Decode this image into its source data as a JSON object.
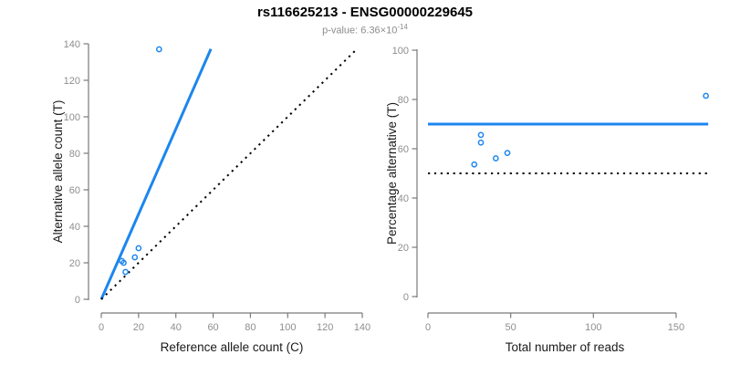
{
  "header": {
    "title": "rs116625213 - ENSG00000229645",
    "pvalue_base": "p-value: 6.36×10",
    "pvalue_exponent": "-14"
  },
  "colors": {
    "accent_blue": "#1C86EE",
    "identity_black": "#000000",
    "axis_gray": "#7a7a7a",
    "tick_label_gray": "#8e8e8e",
    "axis_title_color": "#1a1a1a",
    "subtitle_gray": "#8c8c8c"
  },
  "chart_data": [
    {
      "id": "allele-counts-scatter",
      "type": "scatter",
      "title": "",
      "xlabel": "Reference allele count (C)",
      "ylabel": "Alternative allele count (T)",
      "xlim": [
        0,
        140
      ],
      "ylim": [
        0,
        140
      ],
      "xticks": [
        0,
        20,
        40,
        60,
        80,
        100,
        120,
        140
      ],
      "yticks": [
        0,
        20,
        40,
        60,
        80,
        100,
        120,
        140
      ],
      "grid": false,
      "legend": null,
      "points": [
        [
          31,
          137
        ],
        [
          11,
          21
        ],
        [
          12,
          20
        ],
        [
          13,
          15
        ],
        [
          18,
          23
        ],
        [
          20,
          28
        ]
      ],
      "lines": [
        {
          "name": "fitted-ratio-line",
          "style": "solid",
          "color": "#1C86EE",
          "from": [
            0,
            0
          ],
          "to": [
            58.8,
            137.2
          ]
        },
        {
          "name": "identity-line",
          "style": "dotted",
          "color": "#000000",
          "from": [
            0,
            0
          ],
          "to": [
            136,
            136
          ]
        }
      ]
    },
    {
      "id": "percentage-vs-reads-scatter",
      "type": "scatter",
      "title": "",
      "xlabel": "Total number of reads",
      "ylabel": "Percentage alternative (T)",
      "xlim": [
        0,
        170
      ],
      "ylim": [
        0,
        100
      ],
      "xticks": [
        0,
        50,
        100,
        150
      ],
      "yticks": [
        0,
        20,
        40,
        60,
        80,
        100
      ],
      "grid": false,
      "legend": null,
      "points": [
        [
          168,
          81.5
        ],
        [
          32,
          65.6
        ],
        [
          32,
          62.5
        ],
        [
          28,
          53.6
        ],
        [
          41,
          56.1
        ],
        [
          48,
          58.3
        ]
      ],
      "lines": [
        {
          "name": "fitted-percentage-line",
          "style": "solid",
          "color": "#1C86EE",
          "from": [
            0,
            70
          ],
          "to": [
            169.4,
            70
          ]
        },
        {
          "name": "fifty-percent-line",
          "style": "dotted",
          "color": "#000000",
          "from": [
            0,
            50
          ],
          "to": [
            169.4,
            50
          ]
        }
      ]
    }
  ]
}
